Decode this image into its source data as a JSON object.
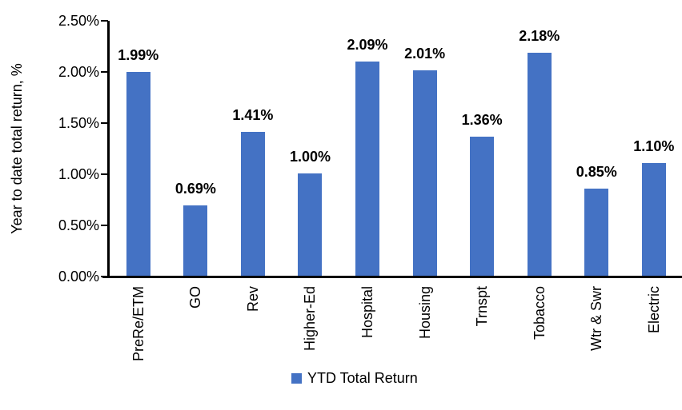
{
  "chart_data": {
    "type": "bar",
    "categories": [
      "PreRe/ETM",
      "GO",
      "Rev",
      "Higher-Ed",
      "Hospital",
      "Housing",
      "Trnspt",
      "Tobacco",
      "Wtr & Swr",
      "Electric"
    ],
    "values": [
      1.99,
      0.69,
      1.41,
      1.0,
      2.09,
      2.01,
      1.36,
      2.18,
      0.85,
      1.1
    ],
    "data_labels": [
      "1.99%",
      "0.69%",
      "1.41%",
      "1.00%",
      "2.09%",
      "2.01%",
      "1.36%",
      "2.18%",
      "0.85%",
      "1.10%"
    ],
    "title": "",
    "xlabel": "",
    "ylabel": "Year to date total return, %",
    "ylim": [
      0,
      2.5
    ],
    "ytick_labels": [
      "2.50%",
      "2.00%",
      "1.50%",
      "1.00%",
      "0.50%",
      "0.00%"
    ],
    "grid": false,
    "legend_position": "bottom",
    "series": [
      {
        "name": "YTD Total Return",
        "values": [
          1.99,
          0.69,
          1.41,
          1.0,
          2.09,
          2.01,
          1.36,
          2.18,
          0.85,
          1.1
        ]
      }
    ]
  },
  "legend": {
    "label": "YTD Total Return"
  },
  "colors": {
    "bar": "#4472C4",
    "axis": "#000000",
    "text": "#000000",
    "background": "#FFFFFF"
  }
}
